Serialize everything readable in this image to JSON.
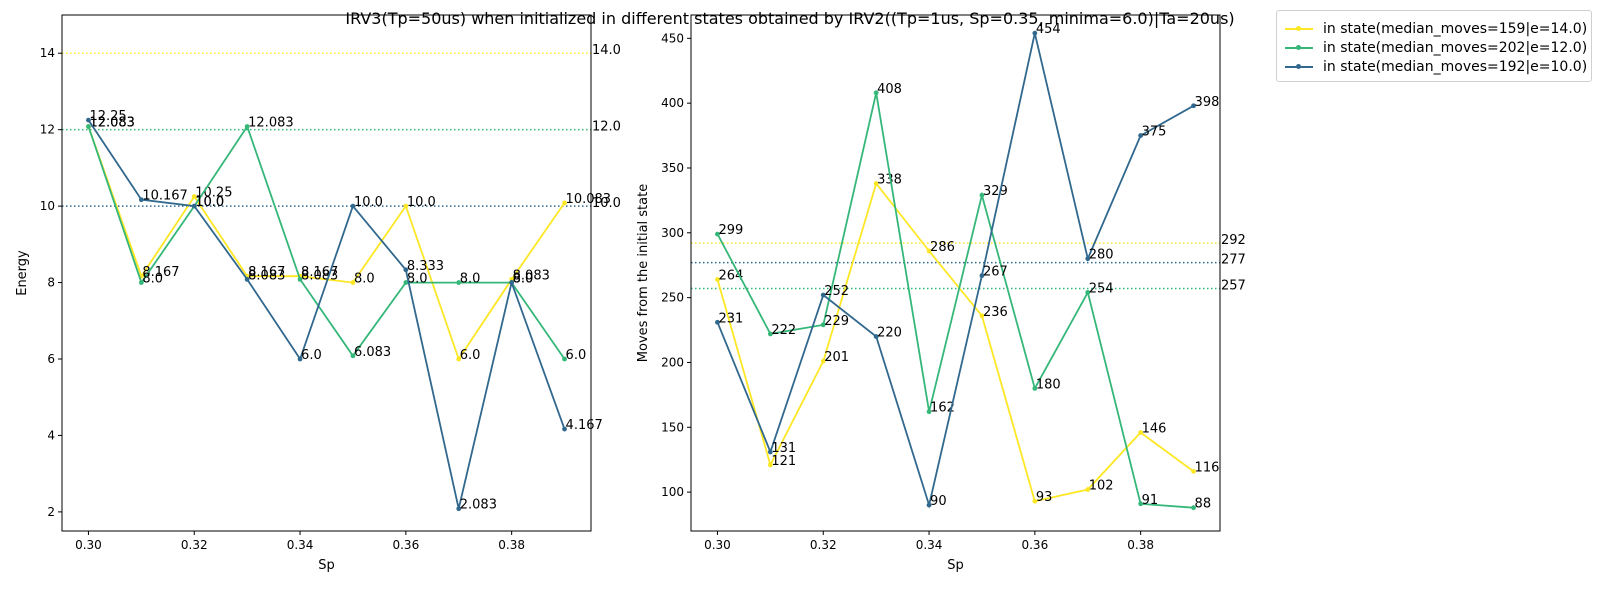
{
  "suptitle": "IRV3(Tp=50us) when initialized in different states obtained by IRV2((Tp=1us, Sp=0.35, minima=6.0)|Ta=20us)",
  "colors": {
    "yellow": "#fde725",
    "green": "#35b779",
    "blue": "#31688e"
  },
  "legend": [
    {
      "label": "in state(median_moves=159|e=14.0)",
      "color": "#fde725"
    },
    {
      "label": "in state(median_moves=202|e=12.0)",
      "color": "#35b779"
    },
    {
      "label": "in state(median_moves=192|e=10.0)",
      "color": "#31688e"
    }
  ],
  "chart_data": [
    {
      "type": "line",
      "xlabel": "Sp",
      "ylabel": "Energy",
      "xlim": [
        0.295,
        0.395
      ],
      "ylim": [
        1.5,
        15.0
      ],
      "xticks": [
        0.3,
        0.32,
        0.34,
        0.36,
        0.38
      ],
      "xtick_labels": [
        "0.30",
        "0.32",
        "0.34",
        "0.36",
        "0.38"
      ],
      "yticks": [
        2,
        4,
        6,
        8,
        10,
        12,
        14
      ],
      "ytick_labels": [
        "2",
        "4",
        "6",
        "8",
        "10",
        "12",
        "14"
      ],
      "x": [
        0.3,
        0.31,
        0.32,
        0.33,
        0.34,
        0.35,
        0.36,
        0.37,
        0.38,
        0.39
      ],
      "series": [
        {
          "name": "in state(median_moves=159|e=14.0)",
          "color": "#fde725",
          "values": [
            12.083,
            8.167,
            10.25,
            8.167,
            8.167,
            8.0,
            10.0,
            6.0,
            8.083,
            10.083
          ],
          "labels": [
            "12.083",
            "8.167",
            "10.25",
            "8.167",
            "8.167",
            "8.0",
            "10.0",
            "6.0",
            "8.083",
            "10.083"
          ]
        },
        {
          "name": "in state(median_moves=202|e=12.0)",
          "color": "#35b779",
          "values": [
            12.083,
            8.0,
            10.0,
            12.083,
            8.083,
            6.083,
            8.0,
            8.0,
            8.0,
            6.0
          ],
          "labels": [
            "12.083",
            "8.0",
            "10.0",
            "12.083",
            "8.083",
            "6.083",
            "8.0",
            "8.0",
            "8.0",
            "6.0"
          ]
        },
        {
          "name": "in state(median_moves=192|e=10.0)",
          "color": "#31688e",
          "values": [
            12.25,
            10.167,
            10.0,
            8.083,
            6.0,
            10.0,
            8.333,
            2.083,
            8.0,
            4.167
          ],
          "labels": [
            "12.25",
            "10.167",
            "10.0",
            "8.083",
            "6.0",
            "10.0",
            "8.333",
            "2.083",
            "8.0",
            "4.167"
          ]
        }
      ],
      "hlines": [
        {
          "y": 14.0,
          "label": "14.0",
          "color": "#fde725"
        },
        {
          "y": 12.0,
          "label": "12.0",
          "color": "#35b779"
        },
        {
          "y": 10.0,
          "label": "10.0",
          "color": "#31688e"
        }
      ],
      "grid": false
    },
    {
      "type": "line",
      "xlabel": "Sp",
      "ylabel": "Moves from the initial state",
      "xlim": [
        0.295,
        0.395
      ],
      "ylim": [
        70,
        468
      ],
      "xticks": [
        0.3,
        0.32,
        0.34,
        0.36,
        0.38
      ],
      "xtick_labels": [
        "0.30",
        "0.32",
        "0.34",
        "0.36",
        "0.38"
      ],
      "yticks": [
        100,
        150,
        200,
        250,
        300,
        350,
        400,
        450
      ],
      "ytick_labels": [
        "100",
        "150",
        "200",
        "250",
        "300",
        "350",
        "400",
        "450"
      ],
      "x": [
        0.3,
        0.31,
        0.32,
        0.33,
        0.34,
        0.35,
        0.36,
        0.37,
        0.38,
        0.39
      ],
      "series": [
        {
          "name": "in state(median_moves=159|e=14.0)",
          "color": "#fde725",
          "values": [
            264,
            121,
            201,
            338,
            286,
            236,
            93,
            102,
            146,
            116
          ],
          "labels": [
            "264",
            "121",
            "201",
            "338",
            "286",
            "236",
            "93",
            "102",
            "146",
            "116"
          ]
        },
        {
          "name": "in state(median_moves=202|e=12.0)",
          "color": "#35b779",
          "values": [
            299,
            222,
            229,
            408,
            162,
            329,
            180,
            254,
            91,
            88
          ],
          "labels": [
            "299",
            "222",
            "229",
            "408",
            "162",
            "329",
            "180",
            "254",
            "91",
            "88"
          ]
        },
        {
          "name": "in state(median_moves=192|e=10.0)",
          "color": "#31688e",
          "values": [
            231,
            131,
            252,
            220,
            90,
            267,
            454,
            280,
            375,
            398
          ],
          "labels": [
            "231",
            "131",
            "252",
            "220",
            "90",
            "267",
            "454",
            "280",
            "375",
            "398"
          ]
        }
      ],
      "hlines": [
        {
          "y": 292,
          "label": "292",
          "color": "#fde725"
        },
        {
          "y": 277,
          "label": "277",
          "color": "#31688e"
        },
        {
          "y": 257,
          "label": "257",
          "color": "#35b779"
        }
      ],
      "grid": false
    }
  ]
}
